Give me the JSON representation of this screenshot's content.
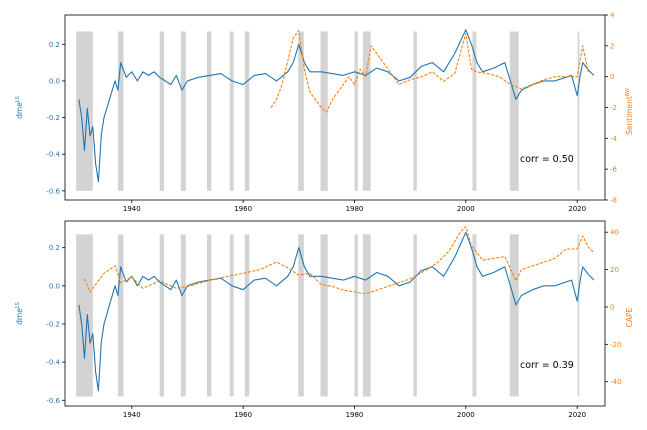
{
  "chart_data": [
    {
      "type": "line",
      "panel": "top",
      "xticks": [
        1940,
        1960,
        1980,
        2000,
        2020
      ],
      "xlim": [
        1928,
        2025
      ],
      "ylabel_left": "dme^LS",
      "ylabel_right": "Sentiment^BW",
      "ylim_left": [
        -0.65,
        0.36
      ],
      "yticks_left": [
        -0.6,
        -0.4,
        -0.2,
        0.0,
        0.2
      ],
      "ylim_right": [
        -8,
        4
      ],
      "yticks_right": [
        -8,
        -6,
        -4,
        -2,
        0,
        2,
        4
      ],
      "annotation": "corr = 0.50",
      "recessions": [
        [
          1930.0,
          1933.0
        ],
        [
          1937.5,
          1938.5
        ],
        [
          1945.0,
          1945.8
        ],
        [
          1948.8,
          1949.7
        ],
        [
          1953.5,
          1954.3
        ],
        [
          1957.6,
          1958.3
        ],
        [
          1960.3,
          1961.1
        ],
        [
          1969.9,
          1970.9
        ],
        [
          1973.9,
          1975.2
        ],
        [
          1980.0,
          1980.6
        ],
        [
          1981.5,
          1982.9
        ],
        [
          1990.6,
          1991.2
        ],
        [
          2001.2,
          2001.9
        ],
        [
          2007.9,
          2009.5
        ],
        [
          2020.1,
          2020.4
        ]
      ],
      "series": [
        {
          "axis": "left",
          "color": "#1f77b4",
          "style": "solid",
          "x": [
            1930.5,
            1931.0,
            1931.5,
            1932.0,
            1932.5,
            1933.0,
            1933.5,
            1934.0,
            1934.5,
            1935.0,
            1935.5,
            1936.0,
            1936.5,
            1937.0,
            1937.5,
            1938.0,
            1939.0,
            1940.0,
            1941.0,
            1942.0,
            1943.0,
            1944.0,
            1945.0,
            1946.0,
            1947.0,
            1948.0,
            1949.0,
            1950.0,
            1952.0,
            1954.0,
            1956.0,
            1958.0,
            1960.0,
            1962.0,
            1964.0,
            1966.0,
            1968.0,
            1969.0,
            1970.0,
            1971.0,
            1972.0,
            1974.0,
            1976.0,
            1978.0,
            1980.0,
            1982.0,
            1984.0,
            1986.0,
            1988.0,
            1990.0,
            1992.0,
            1994.0,
            1996.0,
            1998.0,
            2000.0,
            2001.0,
            2002.0,
            2003.0,
            2005.0,
            2007.0,
            2008.0,
            2009.0,
            2010.0,
            2012.0,
            2014.0,
            2016.0,
            2018.0,
            2019.0,
            2020.0,
            2020.5,
            2021.0,
            2022.0,
            2023.0
          ],
          "y": [
            -0.1,
            -0.2,
            -0.38,
            -0.15,
            -0.3,
            -0.25,
            -0.45,
            -0.55,
            -0.3,
            -0.2,
            -0.15,
            -0.1,
            -0.05,
            0.0,
            -0.05,
            0.1,
            0.02,
            0.05,
            0.0,
            0.05,
            0.03,
            0.05,
            0.02,
            0.0,
            -0.02,
            0.03,
            -0.05,
            0.0,
            0.02,
            0.03,
            0.04,
            0.0,
            -0.02,
            0.03,
            0.04,
            0.0,
            0.05,
            0.1,
            0.2,
            0.1,
            0.05,
            0.05,
            0.04,
            0.03,
            0.05,
            0.03,
            0.07,
            0.05,
            0.0,
            0.02,
            0.08,
            0.1,
            0.05,
            0.15,
            0.28,
            0.2,
            0.1,
            0.05,
            0.07,
            0.1,
            0.0,
            -0.1,
            -0.05,
            -0.02,
            0.0,
            0.0,
            0.02,
            0.03,
            -0.08,
            0.02,
            0.1,
            0.06,
            0.03
          ]
        },
        {
          "axis": "right",
          "color": "#ff7f0e",
          "style": "dashed",
          "x": [
            1965.0,
            1966.0,
            1967.0,
            1968.0,
            1969.0,
            1970.0,
            1971.0,
            1972.0,
            1973.0,
            1974.0,
            1975.0,
            1976.0,
            1977.0,
            1978.0,
            1979.0,
            1980.0,
            1981.0,
            1982.0,
            1983.0,
            1984.0,
            1986.0,
            1988.0,
            1990.0,
            1992.0,
            1994.0,
            1996.0,
            1998.0,
            2000.0,
            2001.0,
            2002.0,
            2004.0,
            2006.0,
            2008.0,
            2010.0,
            2012.0,
            2014.0,
            2016.0,
            2018.0,
            2020.0,
            2021.0,
            2022.0
          ],
          "y": [
            -2.0,
            -1.5,
            -0.5,
            1.0,
            2.5,
            3.0,
            0.5,
            -1.0,
            -1.5,
            -2.0,
            -2.3,
            -1.5,
            -1.0,
            -0.5,
            0.0,
            -0.5,
            0.5,
            0.0,
            2.0,
            1.5,
            0.5,
            -0.5,
            -0.2,
            0.0,
            0.3,
            -0.3,
            0.2,
            2.8,
            0.5,
            0.3,
            0.2,
            0.0,
            -0.5,
            -0.8,
            -0.5,
            -0.2,
            0.0,
            0.0,
            0.0,
            2.0,
            0.3
          ]
        }
      ]
    },
    {
      "type": "line",
      "panel": "bottom",
      "xticks": [
        1940,
        1960,
        1980,
        2000,
        2020
      ],
      "xlim": [
        1928,
        2025
      ],
      "ylabel_left": "dme^LS",
      "ylabel_right": "CAPE",
      "ylim_left": [
        -0.63,
        0.34
      ],
      "yticks_left": [
        -0.6,
        -0.4,
        -0.2,
        0.0,
        0.2
      ],
      "ylim_right": [
        -53,
        46
      ],
      "yticks_right": [
        -40,
        -20,
        0,
        20,
        40
      ],
      "annotation": "corr = 0.39",
      "recessions": [
        [
          1930.0,
          1933.0
        ],
        [
          1937.5,
          1938.5
        ],
        [
          1945.0,
          1945.8
        ],
        [
          1948.8,
          1949.7
        ],
        [
          1953.5,
          1954.3
        ],
        [
          1957.6,
          1958.3
        ],
        [
          1960.3,
          1961.1
        ],
        [
          1969.9,
          1970.9
        ],
        [
          1973.9,
          1975.2
        ],
        [
          1980.0,
          1980.6
        ],
        [
          1981.5,
          1982.9
        ],
        [
          1990.6,
          1991.2
        ],
        [
          2001.2,
          2001.9
        ],
        [
          2007.9,
          2009.5
        ],
        [
          2020.1,
          2020.4
        ]
      ],
      "series": [
        {
          "axis": "left",
          "color": "#1f77b4",
          "style": "solid",
          "x": [
            1930.5,
            1931.0,
            1931.5,
            1932.0,
            1932.5,
            1933.0,
            1933.5,
            1934.0,
            1934.5,
            1935.0,
            1935.5,
            1936.0,
            1936.5,
            1937.0,
            1937.5,
            1938.0,
            1939.0,
            1940.0,
            1941.0,
            1942.0,
            1943.0,
            1944.0,
            1945.0,
            1946.0,
            1947.0,
            1948.0,
            1949.0,
            1950.0,
            1952.0,
            1954.0,
            1956.0,
            1958.0,
            1960.0,
            1962.0,
            1964.0,
            1966.0,
            1968.0,
            1969.0,
            1970.0,
            1971.0,
            1972.0,
            1974.0,
            1976.0,
            1978.0,
            1980.0,
            1982.0,
            1984.0,
            1986.0,
            1988.0,
            1990.0,
            1992.0,
            1994.0,
            1996.0,
            1998.0,
            2000.0,
            2001.0,
            2002.0,
            2003.0,
            2005.0,
            2007.0,
            2008.0,
            2009.0,
            2010.0,
            2012.0,
            2014.0,
            2016.0,
            2018.0,
            2019.0,
            2020.0,
            2020.5,
            2021.0,
            2022.0,
            2023.0
          ],
          "y": [
            -0.1,
            -0.2,
            -0.38,
            -0.15,
            -0.3,
            -0.25,
            -0.45,
            -0.55,
            -0.3,
            -0.2,
            -0.15,
            -0.1,
            -0.05,
            0.0,
            -0.05,
            0.1,
            0.02,
            0.05,
            0.0,
            0.05,
            0.03,
            0.05,
            0.02,
            0.0,
            -0.02,
            0.03,
            -0.05,
            0.0,
            0.02,
            0.03,
            0.04,
            0.0,
            -0.02,
            0.03,
            0.04,
            0.0,
            0.05,
            0.1,
            0.2,
            0.1,
            0.05,
            0.05,
            0.04,
            0.03,
            0.05,
            0.03,
            0.07,
            0.05,
            0.0,
            0.02,
            0.08,
            0.1,
            0.05,
            0.15,
            0.28,
            0.2,
            0.1,
            0.05,
            0.07,
            0.1,
            0.0,
            -0.1,
            -0.05,
            -0.02,
            0.0,
            0.0,
            0.02,
            0.03,
            -0.08,
            0.02,
            0.1,
            0.06,
            0.03
          ]
        },
        {
          "axis": "right",
          "color": "#ff7f0e",
          "style": "dashed",
          "x": [
            1931.5,
            1932.5,
            1933.5,
            1935.0,
            1937.0,
            1938.0,
            1940.0,
            1942.0,
            1945.0,
            1948.0,
            1950.0,
            1955.0,
            1960.0,
            1963.0,
            1966.0,
            1968.0,
            1970.0,
            1972.0,
            1974.0,
            1976.0,
            1978.0,
            1980.0,
            1982.0,
            1985.0,
            1990.0,
            1993.0,
            1995.0,
            1997.0,
            1999.0,
            2000.0,
            2001.0,
            2003.0,
            2005.0,
            2007.0,
            2009.0,
            2010.0,
            2013.0,
            2016.0,
            2018.0,
            2020.0,
            2021.0,
            2022.0,
            2023.0
          ],
          "y": [
            15.0,
            8.0,
            12.0,
            18.0,
            22.0,
            13.0,
            16.0,
            10.0,
            14.0,
            10.0,
            11.0,
            15.0,
            18.0,
            20.0,
            24.0,
            21.0,
            17.0,
            18.0,
            12.0,
            11.0,
            9.0,
            8.0,
            7.0,
            10.0,
            15.0,
            20.0,
            24.0,
            30.0,
            40.0,
            43.0,
            33.0,
            25.0,
            26.0,
            27.0,
            14.0,
            20.0,
            23.0,
            26.0,
            31.0,
            31.0,
            38.0,
            32.0,
            29.0
          ]
        }
      ]
    }
  ]
}
